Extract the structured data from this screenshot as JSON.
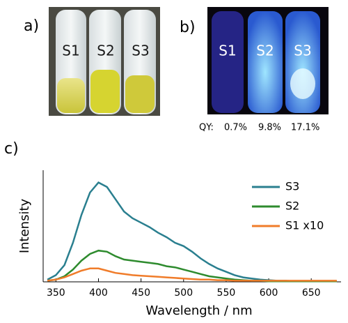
{
  "panel_a": {
    "label": "a)",
    "tubes": [
      "S1",
      "S2",
      "S3"
    ]
  },
  "panel_b": {
    "label": "b)",
    "tubes": [
      "S1",
      "S2",
      "S3"
    ]
  },
  "qy": {
    "label": "QY:",
    "values": [
      "0.7%",
      "9.8%",
      "17.1%"
    ]
  },
  "panel_c": {
    "label": "c)"
  },
  "chart_data": {
    "type": "line",
    "x_label": "Wavelength / nm",
    "y_label": "Intensity",
    "x": [
      340,
      350,
      360,
      370,
      380,
      390,
      400,
      410,
      420,
      430,
      440,
      450,
      460,
      470,
      480,
      490,
      500,
      510,
      520,
      530,
      540,
      550,
      560,
      570,
      580,
      590,
      600,
      610,
      620,
      630,
      640,
      650,
      660,
      670,
      680
    ],
    "series": [
      {
        "name": "S3",
        "color": "#2a7f8f",
        "values": [
          2,
          6,
          15,
          35,
          60,
          80,
          89,
          85,
          74,
          63,
          57,
          53,
          49,
          44,
          40,
          35,
          32,
          27,
          21,
          16,
          12,
          9,
          6,
          4,
          3,
          2,
          1.5,
          1,
          1,
          0.5,
          0.5,
          0.5,
          0.5,
          0.5,
          0.5
        ]
      },
      {
        "name": "S2",
        "color": "#2e8b2e",
        "values": [
          1,
          2,
          5,
          11,
          19,
          25,
          28,
          27,
          23,
          20,
          19,
          18,
          17,
          16,
          14,
          13,
          11,
          9,
          7,
          5,
          4,
          3,
          2,
          1.5,
          1,
          1,
          0.5,
          0.5,
          0.5,
          0.5,
          0.5,
          0.5,
          0.5,
          0.5,
          0.5
        ]
      },
      {
        "name": "S1 x10",
        "color": "#f07c2a",
        "values": [
          1,
          2,
          4,
          7,
          10,
          12,
          12,
          10,
          8,
          7,
          6,
          5.5,
          5,
          4.5,
          4,
          3.5,
          3,
          2.5,
          2,
          2,
          1.5,
          1.5,
          1,
          1,
          1,
          1,
          1,
          1,
          1,
          1,
          1,
          1,
          1,
          1,
          1
        ]
      }
    ],
    "xlim": [
      335,
      685
    ],
    "ylim": [
      0,
      100
    ],
    "xticks": [
      350,
      400,
      450,
      500,
      550,
      600,
      650
    ],
    "legend": "upper right"
  }
}
